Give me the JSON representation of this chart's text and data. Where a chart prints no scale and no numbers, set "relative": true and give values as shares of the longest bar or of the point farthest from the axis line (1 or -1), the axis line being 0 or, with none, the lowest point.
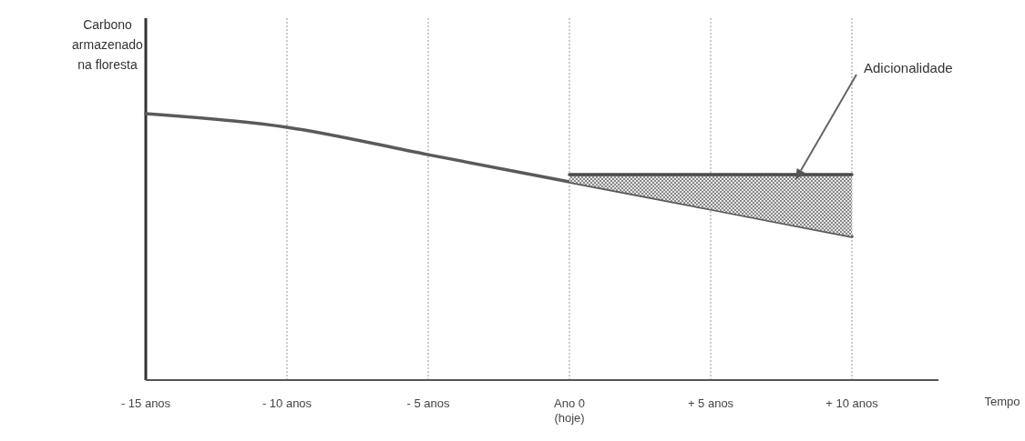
{
  "chart_data": {
    "type": "line",
    "relative": true,
    "ylabel": "Carbono\narmazenado\nna floresta",
    "xlabel": "Tempo",
    "categories": [
      "- 15 anos",
      "- 10 anos",
      "- 5 anos",
      "Ano 0\n(hoje)",
      "+ 5 anos",
      "+ 10 anos"
    ],
    "grid": "x",
    "line_style": "solid",
    "marker": "none",
    "annotations": [
      "Adicionalidade"
    ],
    "series": [
      {
        "color": "#5a5a5a",
        "values": [
          1,
          0.949,
          0.846,
          0.744,
          0.642,
          0.539
        ]
      },
      {
        "color": "#4a4a4a",
        "values": [
          null,
          null,
          null,
          0.771,
          0.771,
          0.771
        ],
        "lower": [
          null,
          null,
          null,
          0.744,
          0.642,
          0.539
        ],
        "upper": [
          null,
          null,
          null,
          0.771,
          0.771,
          0.771
        ]
      }
    ]
  }
}
